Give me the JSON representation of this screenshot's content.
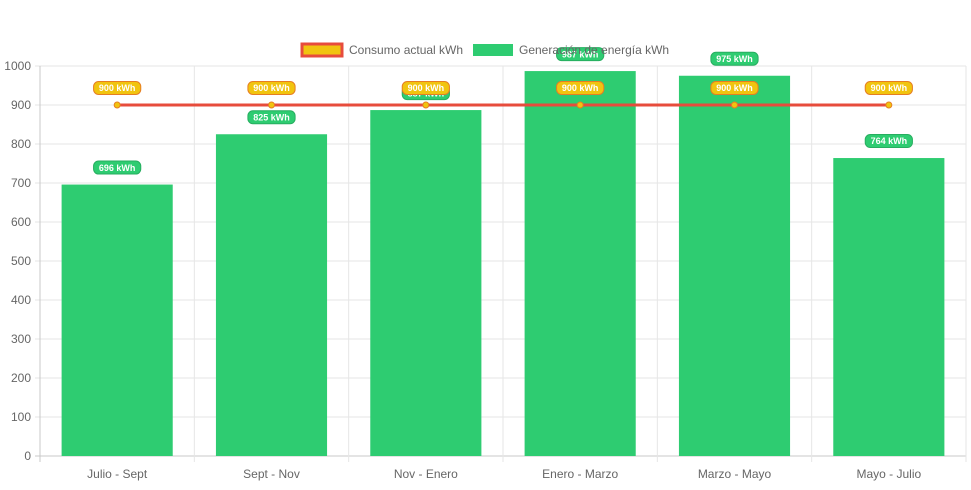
{
  "chart_data": {
    "type": "bar",
    "categories": [
      "Julio - Sept",
      "Sept - Nov",
      "Nov - Enero",
      "Enero - Marzo",
      "Marzo - Mayo",
      "Mayo - Julio"
    ],
    "series": [
      {
        "name": "Consumo actual kWh",
        "kind": "line",
        "values": [
          900,
          900,
          900,
          900,
          900,
          900
        ],
        "color": "#e74c3c",
        "fill_color": "#f1c40f"
      },
      {
        "name": "Generación de energía kWh",
        "kind": "bar",
        "values": [
          696,
          825,
          887,
          987,
          975,
          764
        ],
        "color": "#2ecc71"
      }
    ],
    "data_labels": {
      "Consumo actual kWh": [
        "900 kWh",
        "900 kWh",
        "900 kWh",
        "900 kWh",
        "900 kWh",
        "900 kWh"
      ],
      "Generación de energía kWh": [
        "696 kWh",
        "825 kWh",
        "887 kWh",
        "987 kWh",
        "975 kWh",
        "764 kWh"
      ]
    },
    "title": "",
    "xlabel": "",
    "ylabel": "",
    "ylim": [
      0,
      1000
    ],
    "yticks": [
      0,
      100,
      200,
      300,
      400,
      500,
      600,
      700,
      800,
      900,
      1000
    ],
    "grid": true,
    "legend_position": "top-center"
  }
}
